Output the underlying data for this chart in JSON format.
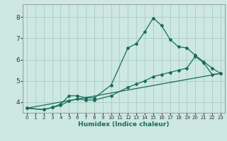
{
  "title": "",
  "xlabel": "Humidex (Indice chaleur)",
  "xlim": [
    -0.5,
    23.5
  ],
  "ylim": [
    3.5,
    8.6
  ],
  "yticks": [
    4,
    5,
    6,
    7,
    8
  ],
  "xticks": [
    0,
    1,
    2,
    3,
    4,
    5,
    6,
    7,
    8,
    9,
    10,
    11,
    12,
    13,
    14,
    15,
    16,
    17,
    18,
    19,
    20,
    21,
    22,
    23
  ],
  "background_color": "#cce8e0",
  "grid_color": "#aaccC4",
  "line_color": "#1a6b5a",
  "line1": {
    "x": [
      0,
      2,
      3,
      4,
      5,
      6,
      7,
      8,
      10,
      12,
      13,
      14,
      15,
      16,
      17,
      18,
      19,
      20,
      21,
      22,
      23
    ],
    "y": [
      3.72,
      3.65,
      3.75,
      3.9,
      4.3,
      4.3,
      4.2,
      4.2,
      4.8,
      6.55,
      6.75,
      7.3,
      7.95,
      7.6,
      6.95,
      6.6,
      6.55,
      6.2,
      5.9,
      5.6,
      5.35
    ]
  },
  "line2": {
    "x": [
      0,
      2,
      3,
      4,
      5,
      6,
      7,
      8,
      10,
      12,
      13,
      14,
      15,
      16,
      17,
      18,
      19,
      20,
      21,
      22,
      23
    ],
    "y": [
      3.72,
      3.65,
      3.75,
      3.85,
      4.05,
      4.15,
      4.1,
      4.1,
      4.3,
      4.7,
      4.85,
      5.0,
      5.2,
      5.3,
      5.4,
      5.5,
      5.6,
      6.15,
      5.85,
      5.3,
      5.35
    ]
  },
  "line3": {
    "x": [
      0,
      23
    ],
    "y": [
      3.72,
      5.35
    ]
  },
  "xlabel_fontsize": 6.5,
  "xlabel_fontweight": "bold",
  "tick_fontsize_x": 5,
  "tick_fontsize_y": 6.5,
  "marker_size": 2.0,
  "linewidth": 0.9
}
